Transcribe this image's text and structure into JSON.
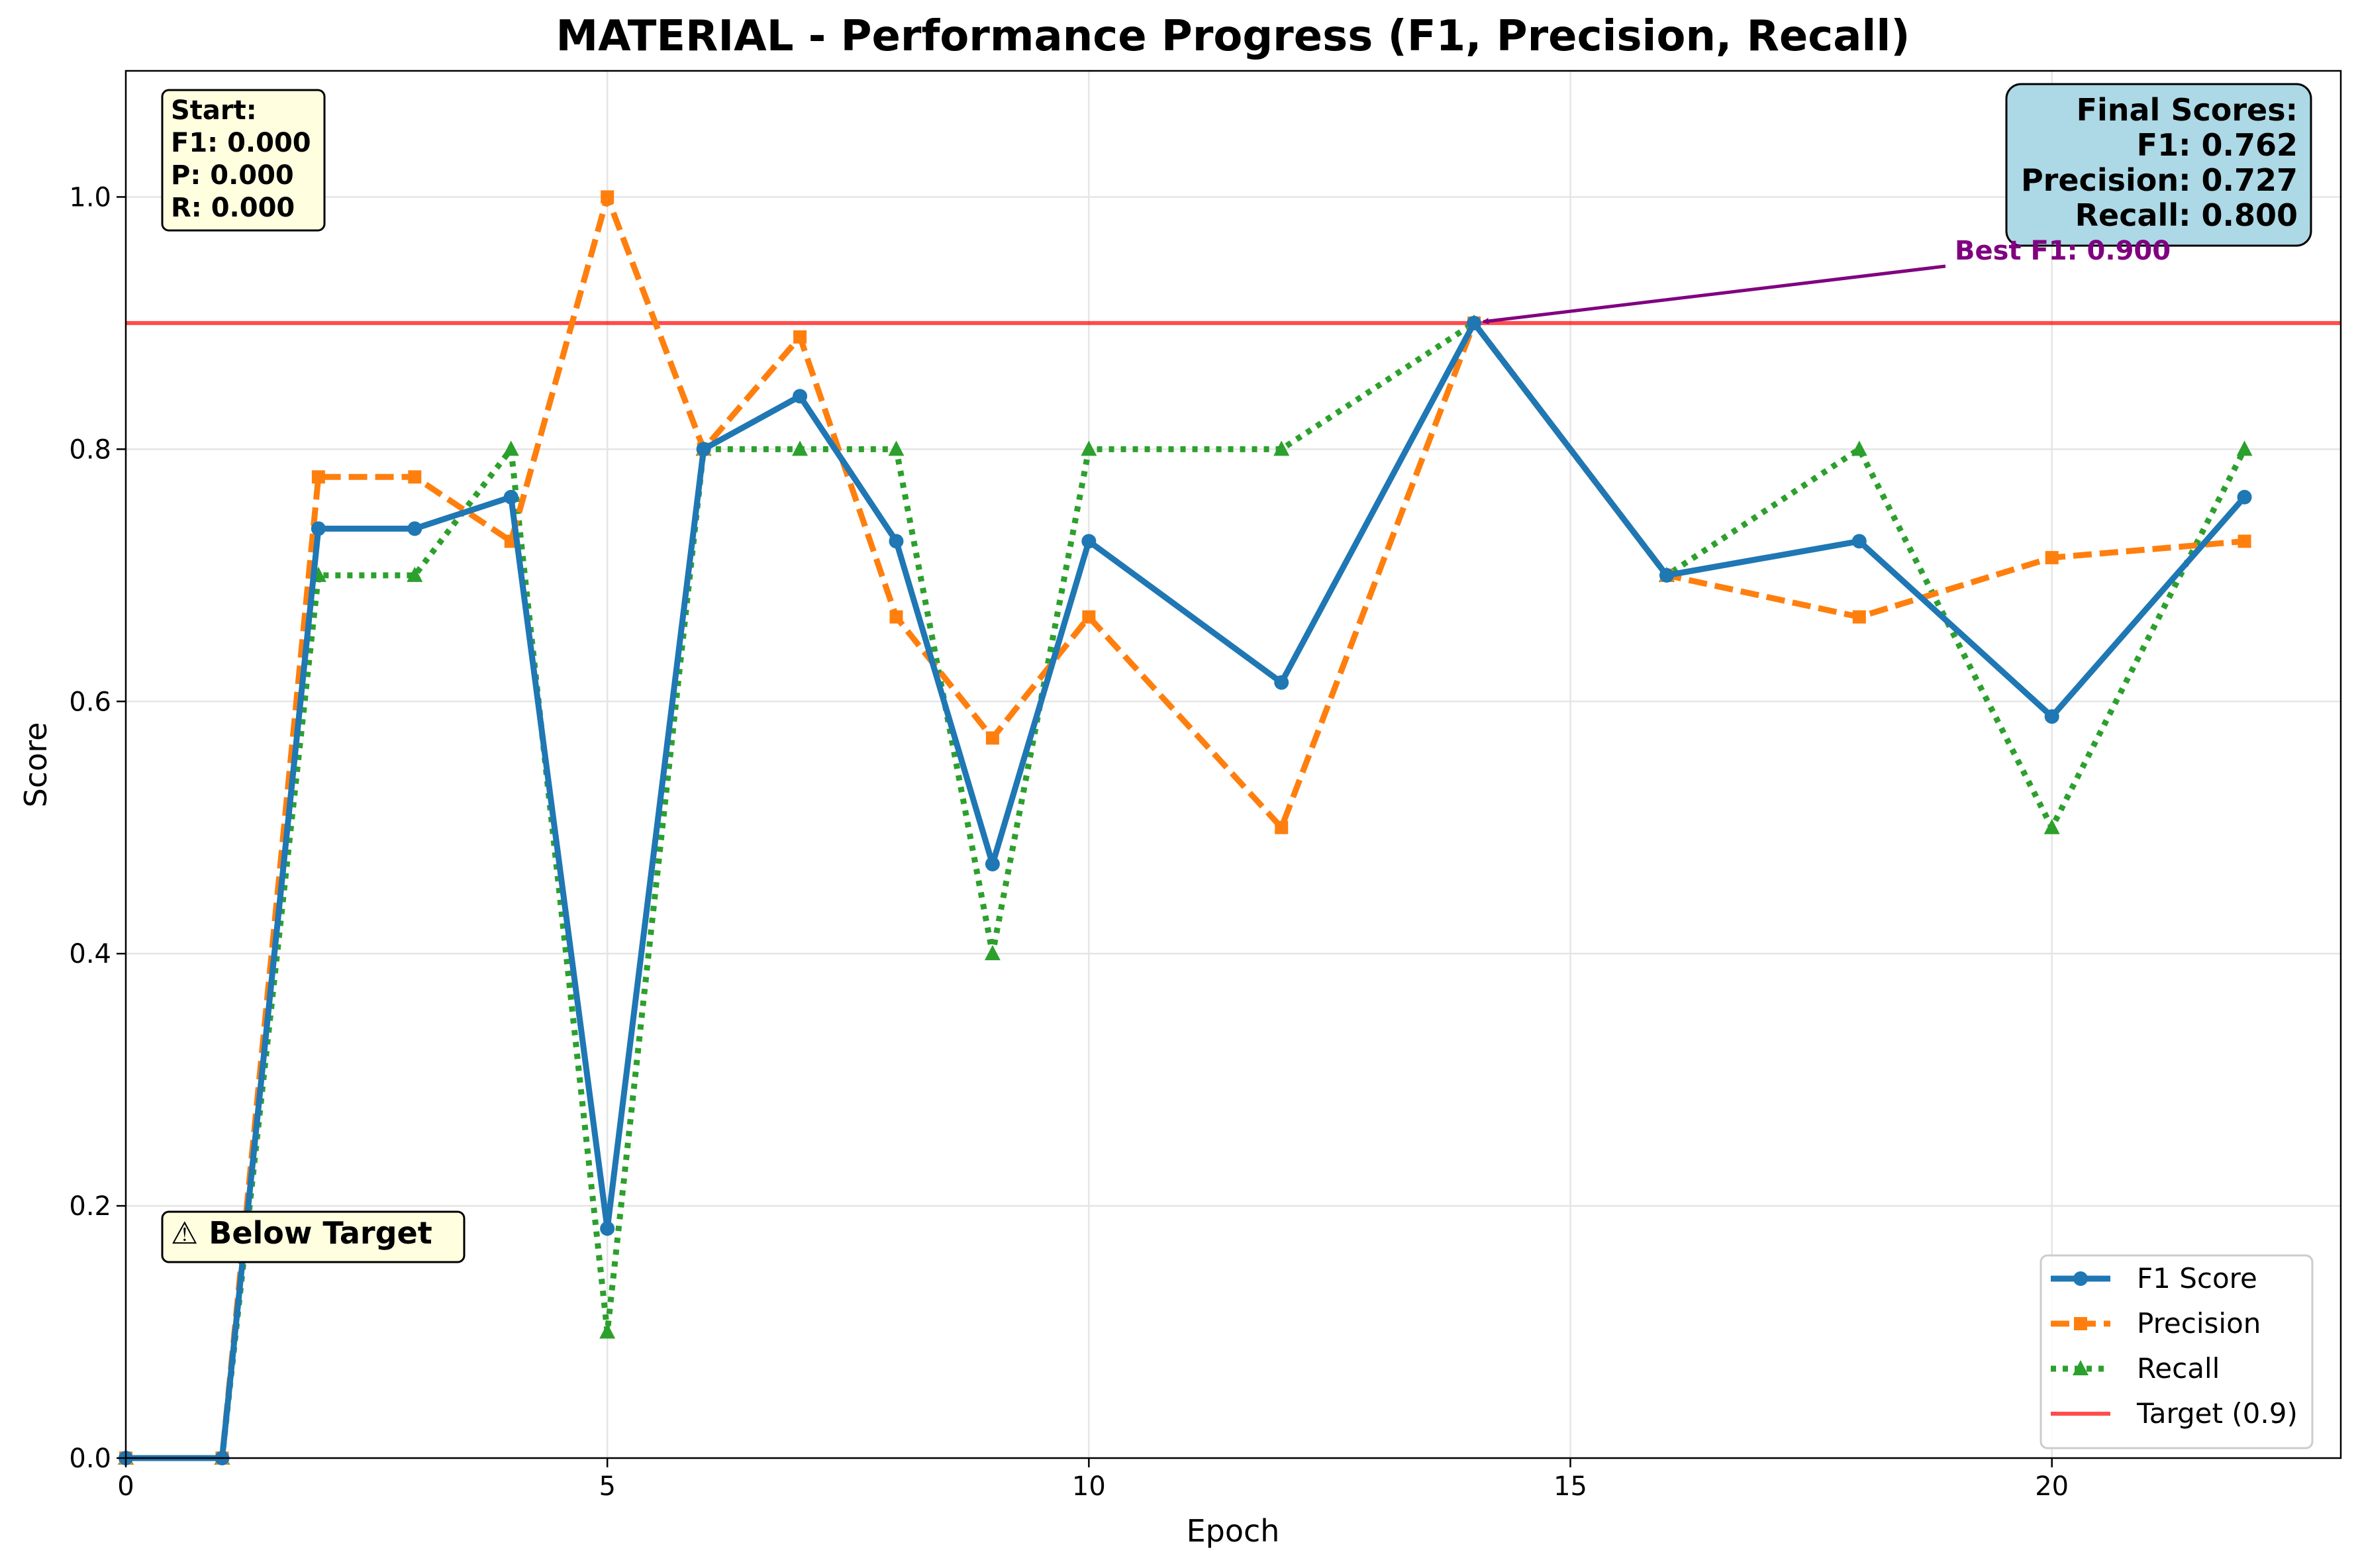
{
  "chart_data": {
    "type": "line",
    "title": "MATERIAL - Performance Progress (F1, Precision, Recall)",
    "xlabel": "Epoch",
    "ylabel": "Score",
    "xlim": [
      0,
      23
    ],
    "ylim": [
      0,
      1.1
    ],
    "xticks": [
      0,
      5,
      10,
      15,
      20
    ],
    "yticks": [
      0.0,
      0.2,
      0.4,
      0.6,
      0.8,
      1.0
    ],
    "grid": true,
    "legend_position": "lower-right",
    "x": [
      0,
      1,
      2,
      3,
      4,
      5,
      6,
      7,
      8,
      9,
      10,
      12,
      14,
      16,
      18,
      20,
      22
    ],
    "series": [
      {
        "name": "F1 Score",
        "color": "#1f77b4",
        "line_style": "solid",
        "marker": "circle",
        "values": [
          0.0,
          0.0,
          0.737,
          0.737,
          0.762,
          0.182,
          0.8,
          0.842,
          0.727,
          0.471,
          0.727,
          0.615,
          0.9,
          0.7,
          0.727,
          0.588,
          0.762
        ]
      },
      {
        "name": "Precision",
        "color": "#ff7f0e",
        "line_style": "dashed",
        "marker": "square",
        "values": [
          0.0,
          0.0,
          0.778,
          0.778,
          0.727,
          1.0,
          0.8,
          0.889,
          0.667,
          0.571,
          0.667,
          0.5,
          0.9,
          0.7,
          0.667,
          0.714,
          0.727
        ]
      },
      {
        "name": "Recall",
        "color": "#2ca02c",
        "line_style": "dotted",
        "marker": "triangle",
        "values": [
          0.0,
          0.0,
          0.7,
          0.7,
          0.8,
          0.1,
          0.8,
          0.8,
          0.8,
          0.4,
          0.8,
          0.8,
          0.9,
          0.7,
          0.8,
          0.5,
          0.8
        ]
      }
    ],
    "target": {
      "name": "Target (0.9)",
      "value": 0.9,
      "color": "#ff0000"
    },
    "annotations": {
      "start_box": {
        "lines": [
          "Start:",
          "F1: 0.000",
          "P: 0.000",
          "R: 0.000"
        ],
        "bg_color": "#ffffe0"
      },
      "final_box": {
        "lines": [
          "Final Scores:",
          "F1: 0.762",
          "Precision: 0.727",
          "Recall: 0.800"
        ],
        "bg_color": "#add8e6"
      },
      "best_f1": {
        "text": "Best F1: 0.900",
        "epoch": 14,
        "value": 0.9,
        "color": "#800080"
      },
      "status": {
        "text": "⚠ Below Target",
        "bg_color": "#ffffe0"
      }
    }
  }
}
